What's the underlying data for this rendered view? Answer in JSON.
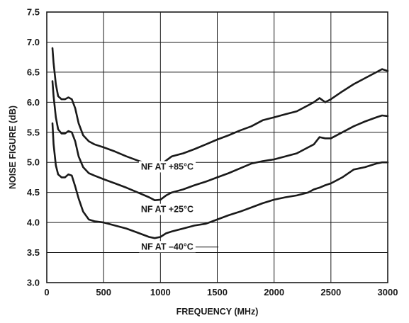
{
  "chart_data": {
    "type": "line",
    "title": "",
    "xlabel": "FREQUENCY (MHz)",
    "ylabel": "NOISE FIGURE (dB)",
    "xlim": [
      0,
      3000
    ],
    "ylim": [
      3.0,
      7.5
    ],
    "x_ticks": [
      0,
      500,
      1000,
      1500,
      2000,
      2500,
      3000
    ],
    "x_tick_labels": [
      "0",
      "500",
      "1000",
      "1500",
      "2000",
      "2500",
      "3000"
    ],
    "y_ticks": [
      3.0,
      3.5,
      4.0,
      4.5,
      5.0,
      5.5,
      6.0,
      6.5,
      7.0,
      7.5
    ],
    "y_tick_labels": [
      "3.0",
      "3.5",
      "4.0",
      "4.5",
      "5.0",
      "5.5",
      "6.0",
      "6.5",
      "7.0",
      "7.5"
    ],
    "grid": true,
    "line_color": "#1a1a1a",
    "series": [
      {
        "name": "NF AT +85°C",
        "x": [
          50,
          60,
          80,
          100,
          130,
          160,
          190,
          220,
          250,
          280,
          320,
          370,
          420,
          500,
          600,
          700,
          800,
          900,
          950,
          1000,
          1050,
          1100,
          1200,
          1300,
          1400,
          1500,
          1600,
          1700,
          1800,
          1900,
          2000,
          2100,
          2200,
          2300,
          2350,
          2400,
          2450,
          2500,
          2600,
          2700,
          2800,
          2900,
          2950,
          3000
        ],
        "y": [
          6.9,
          6.65,
          6.3,
          6.1,
          6.05,
          6.05,
          6.08,
          6.05,
          5.9,
          5.65,
          5.45,
          5.35,
          5.3,
          5.25,
          5.18,
          5.1,
          5.03,
          4.97,
          4.95,
          4.96,
          5.03,
          5.1,
          5.15,
          5.22,
          5.3,
          5.38,
          5.45,
          5.53,
          5.6,
          5.7,
          5.75,
          5.8,
          5.85,
          5.95,
          6.0,
          6.07,
          6.0,
          6.05,
          6.18,
          6.3,
          6.4,
          6.5,
          6.55,
          6.52
        ]
      },
      {
        "name": "NF AT +25°C",
        "x": [
          50,
          60,
          80,
          100,
          130,
          160,
          190,
          220,
          250,
          280,
          320,
          370,
          420,
          500,
          600,
          700,
          800,
          900,
          950,
          1000,
          1050,
          1100,
          1200,
          1300,
          1400,
          1500,
          1600,
          1700,
          1800,
          1900,
          2000,
          2100,
          2200,
          2300,
          2350,
          2400,
          2450,
          2500,
          2600,
          2700,
          2800,
          2900,
          2950,
          3000
        ],
        "y": [
          6.35,
          6.1,
          5.75,
          5.55,
          5.48,
          5.48,
          5.52,
          5.5,
          5.35,
          5.1,
          4.92,
          4.82,
          4.78,
          4.72,
          4.65,
          4.58,
          4.5,
          4.42,
          4.37,
          4.38,
          4.45,
          4.5,
          4.55,
          4.62,
          4.68,
          4.75,
          4.82,
          4.9,
          4.98,
          5.02,
          5.05,
          5.1,
          5.15,
          5.25,
          5.3,
          5.42,
          5.4,
          5.4,
          5.5,
          5.6,
          5.68,
          5.75,
          5.78,
          5.77
        ]
      },
      {
        "name": "NF AT –40°C",
        "x": [
          50,
          60,
          80,
          100,
          130,
          160,
          190,
          220,
          250,
          280,
          320,
          370,
          420,
          500,
          600,
          700,
          800,
          900,
          950,
          1000,
          1050,
          1100,
          1200,
          1300,
          1400,
          1500,
          1600,
          1700,
          1800,
          1900,
          2000,
          2100,
          2200,
          2300,
          2350,
          2400,
          2450,
          2500,
          2600,
          2700,
          2800,
          2900,
          2950,
          3000
        ],
        "y": [
          5.65,
          5.3,
          4.95,
          4.8,
          4.75,
          4.75,
          4.8,
          4.78,
          4.6,
          4.4,
          4.18,
          4.05,
          4.02,
          4.0,
          3.95,
          3.9,
          3.83,
          3.76,
          3.74,
          3.76,
          3.82,
          3.85,
          3.9,
          3.95,
          3.98,
          4.05,
          4.12,
          4.18,
          4.25,
          4.32,
          4.38,
          4.42,
          4.45,
          4.5,
          4.55,
          4.58,
          4.62,
          4.65,
          4.75,
          4.88,
          4.92,
          4.98,
          5.0,
          5.0
        ]
      }
    ],
    "annotations": [
      {
        "text": "NF AT +85°C",
        "anchor_x": 1060,
        "anchor_y": 4.88
      },
      {
        "text": "NF AT +25°C",
        "anchor_x": 1060,
        "anchor_y": 4.17
      },
      {
        "text": "NF AT –40°C",
        "anchor_x": 1060,
        "anchor_y": 3.55,
        "leader_to_x": 1510
      }
    ]
  }
}
